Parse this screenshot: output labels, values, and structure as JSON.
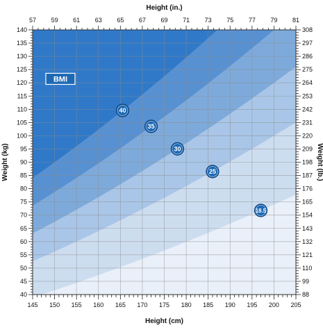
{
  "chart_data": {
    "type": "area",
    "title": "",
    "badge": "BMI",
    "x_bottom": {
      "label": "Height (cm)",
      "range": [
        145,
        205
      ],
      "ticks": [
        145,
        150,
        155,
        160,
        165,
        170,
        175,
        180,
        185,
        190,
        195,
        200,
        205
      ]
    },
    "x_top": {
      "label": "Height (in.)",
      "range": [
        57,
        81
      ],
      "ticks": [
        57,
        59,
        61,
        63,
        65,
        67,
        69,
        71,
        73,
        75,
        77,
        79,
        81
      ]
    },
    "y_left": {
      "label": "Weight (kg)",
      "range": [
        40,
        140
      ],
      "ticks": [
        40,
        45,
        50,
        55,
        60,
        65,
        70,
        75,
        80,
        85,
        90,
        95,
        100,
        105,
        110,
        115,
        120,
        125,
        130,
        135,
        140
      ]
    },
    "y_right": {
      "label": "Weight (lb.)",
      "range": [
        88,
        308
      ],
      "ticks": [
        88,
        99,
        110,
        121,
        132,
        143,
        154,
        165,
        176,
        187,
        198,
        209,
        220,
        231,
        242,
        253,
        264,
        275,
        286,
        297,
        308
      ]
    },
    "grid": true,
    "bmi_bands": [
      {
        "bmi": 18.5,
        "label": "18.5",
        "label_x_cm": 197,
        "color": "#cdddf0"
      },
      {
        "bmi": 25,
        "label": "25",
        "label_x_cm": 186,
        "color": "#a9c6e8"
      },
      {
        "bmi": 30,
        "label": "30",
        "label_x_cm": 178,
        "color": "#7eaadb"
      },
      {
        "bmi": 35,
        "label": "35",
        "label_x_cm": 172,
        "color": "#5891d2"
      },
      {
        "bmi": 40,
        "label": "40",
        "label_x_cm": 165.5,
        "color": "#3079c9"
      }
    ],
    "colors": {
      "below_lowest": "#e9f0f9",
      "marker_fill": "#1d69b5",
      "marker_border": "#0e3f78",
      "badge_fill": "#1d69b5",
      "grid": "#8a8a8a",
      "frame": "#333333"
    }
  }
}
